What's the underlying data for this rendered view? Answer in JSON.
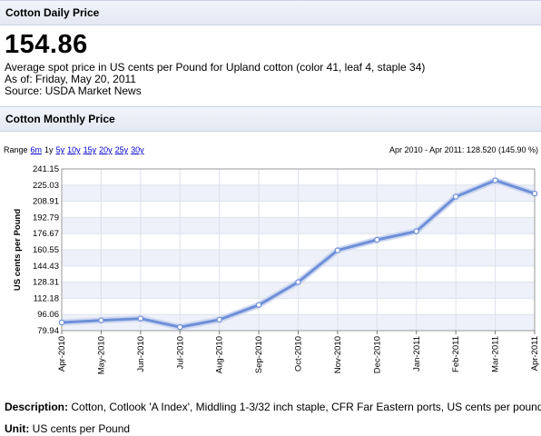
{
  "daily": {
    "header": "Cotton Daily Price",
    "price": "154.86",
    "description": "Average spot price in US cents per Pound for Upland cotton (color 41, leaf 4, staple 34)",
    "as_of": "As of: Friday, May 20, 2011",
    "source": "Source: USDA Market News"
  },
  "monthly": {
    "header": "Cotton Monthly Price",
    "range_label": "Range",
    "range_options": [
      {
        "label": "6m",
        "link": true
      },
      {
        "label": "1y",
        "link": false
      },
      {
        "label": "5y",
        "link": true
      },
      {
        "label": "10y",
        "link": true
      },
      {
        "label": "15y",
        "link": true
      },
      {
        "label": "20y",
        "link": true
      },
      {
        "label": "25y",
        "link": true
      },
      {
        "label": "30y",
        "link": true
      }
    ],
    "range_summary": "Apr 2010 - Apr 2011: 128.520 (145.90 %)"
  },
  "chart_data": {
    "type": "line",
    "ylabel": "US cents per Pound",
    "xlabel": "",
    "y_ticks": [
      "241.15",
      "225.03",
      "208.91",
      "192.79",
      "176.67",
      "160.55",
      "144.43",
      "128.31",
      "112.18",
      "96.06",
      "79.94"
    ],
    "ylim": [
      79.94,
      241.15
    ],
    "categories": [
      "Apr-2010",
      "May-2010",
      "Jun-2010",
      "Jul-2010",
      "Aug-2010",
      "Sep-2010",
      "Oct-2010",
      "Nov-2010",
      "Dec-2010",
      "Jan-2011",
      "Feb-2011",
      "Mar-2011",
      "Apr-2011"
    ],
    "series": [
      {
        "values": [
          88.1,
          90.2,
          92.0,
          83.5,
          90.8,
          105.5,
          128.3,
          160.0,
          170.5,
          179.0,
          213.5,
          229.7,
          216.6
        ]
      }
    ],
    "grid": true,
    "line_color": "#6f8fd8"
  },
  "footer": {
    "description_label": "Description:",
    "description_text": " Cotton, Cotlook 'A Index', Middling 1-3/32 inch staple, CFR Far Eastern ports, US cents per pound",
    "unit_label": "Unit:",
    "unit_text": " US cents per Pound"
  }
}
